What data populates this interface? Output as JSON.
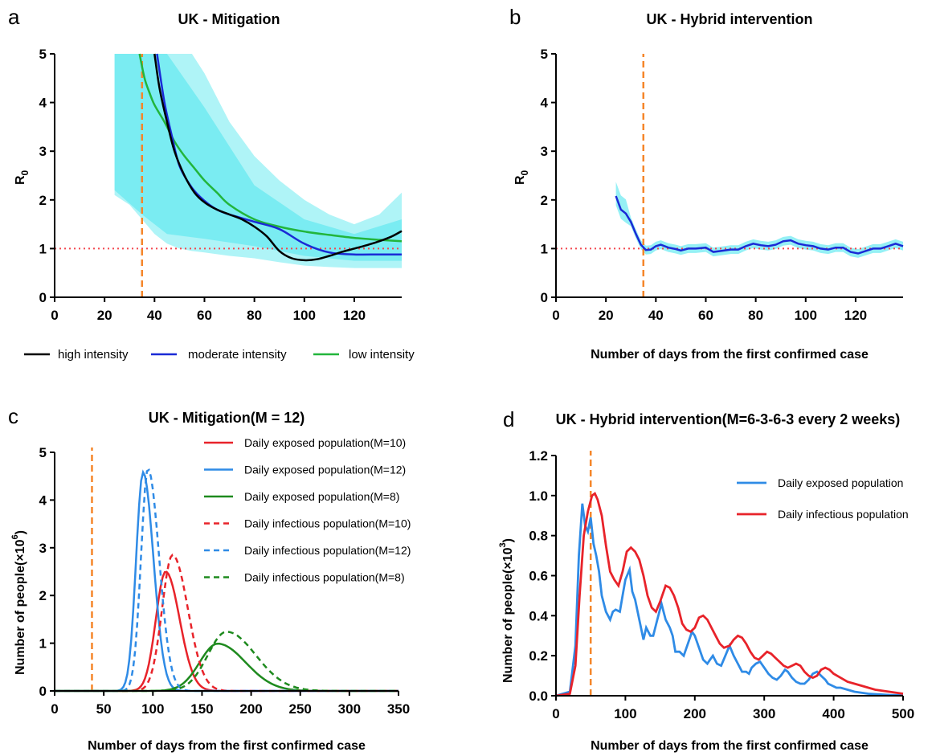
{
  "colors": {
    "high": "#000000",
    "moderate": "#1a2ad6",
    "low": "#22b53c",
    "band": "#4ee6ee",
    "ref": "#f3474f",
    "vline": "#f5862a",
    "red": "#e8232a",
    "blue": "#2f8be6",
    "green": "#1e8a1e"
  },
  "chart_data": [
    {
      "type": "line",
      "panel_label": "a",
      "title": "UK - Mitigation",
      "xlabel": "",
      "ylabel": "R",
      "ylabel_sub": "0",
      "xlim": [
        0,
        139
      ],
      "ylim": [
        0,
        5
      ],
      "x_ticks": [
        0,
        20,
        40,
        60,
        80,
        100,
        120
      ],
      "y_ticks": [
        0,
        1,
        2,
        3,
        4,
        5
      ],
      "legend_position": "bottom",
      "reference_line_y": 1,
      "vertical_line_x": 35,
      "series": [
        {
          "name": "high intensity",
          "key": "high",
          "x": [
            40,
            42,
            45,
            48,
            52,
            56,
            60,
            65,
            70,
            75,
            80,
            85,
            90,
            95,
            100,
            105,
            110,
            115,
            120,
            125,
            130,
            135,
            139
          ],
          "y": [
            5.0,
            4.3,
            3.6,
            3.0,
            2.5,
            2.15,
            1.95,
            1.8,
            1.7,
            1.6,
            1.45,
            1.25,
            0.95,
            0.8,
            0.76,
            0.78,
            0.85,
            0.93,
            1.0,
            1.07,
            1.15,
            1.25,
            1.36
          ]
        },
        {
          "name": "moderate intensity",
          "key": "moderate",
          "x": [
            41,
            44,
            47,
            50,
            55,
            60,
            65,
            70,
            80,
            90,
            100,
            110,
            120,
            130,
            139
          ],
          "y": [
            5.0,
            4.0,
            3.3,
            2.7,
            2.25,
            1.98,
            1.8,
            1.7,
            1.55,
            1.4,
            1.1,
            0.92,
            0.88,
            0.88,
            0.88
          ]
        },
        {
          "name": "low intensity",
          "key": "low",
          "x": [
            34,
            36,
            38,
            40,
            44,
            48,
            52,
            56,
            60,
            65,
            70,
            80,
            90,
            100,
            110,
            120,
            130,
            139
          ],
          "y": [
            5.0,
            4.5,
            4.2,
            3.95,
            3.6,
            3.2,
            2.9,
            2.65,
            2.4,
            2.15,
            1.9,
            1.6,
            1.45,
            1.35,
            1.28,
            1.22,
            1.18,
            1.15
          ]
        }
      ],
      "bands": [
        {
          "x": [
            24,
            30,
            35,
            40,
            45,
            50,
            55,
            60,
            70,
            80,
            90,
            100,
            110,
            120,
            130,
            139
          ],
          "lower": [
            2.1,
            1.9,
            1.6,
            1.3,
            1.1,
            1.0,
            0.95,
            0.92,
            0.85,
            0.8,
            0.72,
            0.65,
            0.62,
            0.6,
            0.6,
            0.6
          ],
          "upper": [
            5.0,
            5.0,
            5.0,
            5.0,
            5.0,
            5.0,
            5.0,
            4.6,
            3.6,
            2.9,
            2.4,
            2.0,
            1.7,
            1.5,
            1.7,
            2.15
          ]
        },
        {
          "x": [
            24,
            35,
            45,
            60,
            80,
            100,
            120,
            139
          ],
          "lower": [
            2.2,
            1.7,
            1.3,
            1.2,
            1.05,
            0.85,
            0.75,
            0.75
          ],
          "upper": [
            5.0,
            5.0,
            5.0,
            3.9,
            2.3,
            1.6,
            1.3,
            1.6
          ]
        }
      ]
    },
    {
      "type": "line",
      "panel_label": "b",
      "title": "UK - Hybrid intervention",
      "xlabel": "Number of days from the first confirmed case",
      "ylabel": "R",
      "ylabel_sub": "0",
      "xlim": [
        0,
        139
      ],
      "ylim": [
        0,
        5
      ],
      "x_ticks": [
        0,
        20,
        40,
        60,
        80,
        100,
        120
      ],
      "y_ticks": [
        0,
        1,
        2,
        3,
        4,
        5
      ],
      "reference_line_y": 1,
      "vertical_line_x": 35,
      "series": [
        {
          "name": "",
          "key": "moderate",
          "x": [
            24,
            26,
            28,
            30,
            32,
            34,
            36,
            38,
            40,
            42,
            45,
            48,
            50,
            53,
            56,
            60,
            63,
            66,
            70,
            73,
            76,
            79,
            82,
            85,
            88,
            91,
            94,
            97,
            100,
            103,
            106,
            109,
            112,
            115,
            118,
            121,
            124,
            127,
            130,
            133,
            136,
            139
          ],
          "y": [
            2.08,
            1.8,
            1.72,
            1.55,
            1.3,
            1.08,
            0.97,
            0.98,
            1.05,
            1.08,
            1.02,
            0.99,
            0.96,
            1.0,
            1.0,
            1.02,
            0.93,
            0.95,
            0.98,
            0.98,
            1.05,
            1.1,
            1.07,
            1.05,
            1.08,
            1.15,
            1.17,
            1.1,
            1.07,
            1.05,
            1.0,
            0.98,
            1.02,
            1.02,
            0.93,
            0.9,
            0.95,
            1.0,
            1.0,
            1.05,
            1.1,
            1.05
          ]
        }
      ],
      "band_halfwidth": 0.09
    },
    {
      "type": "line",
      "panel_label": "c",
      "title": "UK - Mitigation(M = 12)",
      "xlabel": "Number of days from the first confirmed case",
      "ylabel": "Number of people(×10",
      "ylabel_sup": "6",
      "ylabel_end": ")",
      "xlim": [
        0,
        350
      ],
      "ylim": [
        0,
        5
      ],
      "x_ticks": [
        0,
        50,
        100,
        150,
        200,
        250,
        300,
        350
      ],
      "y_ticks": [
        0,
        1,
        2,
        3,
        4,
        5
      ],
      "legend_position": "top-right",
      "vertical_line_x": 38,
      "series": [
        {
          "name": "Daily exposed population(M=10)",
          "color": "red",
          "dash": false,
          "peak_x": 113,
          "peak_y": 2.5,
          "w_left": 14,
          "w_right": 20
        },
        {
          "name": "Daily exposed population(M=12)",
          "color": "blue",
          "dash": false,
          "peak_x": 90,
          "peak_y": 4.58,
          "w_left": 10,
          "w_right": 15
        },
        {
          "name": "Daily exposed population(M=8)",
          "color": "green",
          "dash": false,
          "peak_x": 166,
          "peak_y": 0.99,
          "w_left": 26,
          "w_right": 40
        },
        {
          "name": "Daily infectious population(M=10)",
          "color": "red",
          "dash": true,
          "peak_x": 120,
          "peak_y": 2.85,
          "w_left": 15,
          "w_right": 22
        },
        {
          "name": "Daily infectious population(M=12)",
          "color": "blue",
          "dash": true,
          "peak_x": 95,
          "peak_y": 4.65,
          "w_left": 10,
          "w_right": 16
        },
        {
          "name": "Daily infectious population(M=8)",
          "color": "green",
          "dash": true,
          "peak_x": 175,
          "peak_y": 1.24,
          "w_left": 27,
          "w_right": 42
        }
      ]
    },
    {
      "type": "line",
      "panel_label": "d",
      "title": "UK - Hybrid intervention(M=6-3-6-3 every 2 weeks)",
      "xlabel": "Number of days from the first confirmed case",
      "ylabel": "Number of people(×10",
      "ylabel_sup": "3",
      "ylabel_end": ")",
      "xlim": [
        0,
        500
      ],
      "ylim": [
        0,
        1.2
      ],
      "x_ticks": [
        0,
        100,
        200,
        300,
        400,
        500
      ],
      "y_ticks": [
        0.0,
        0.2,
        0.4,
        0.6,
        0.8,
        1.0,
        1.2
      ],
      "legend_position": "top-right",
      "vertical_line_x": 50,
      "series": [
        {
          "name": "Daily exposed population",
          "color": "blue",
          "x": [
            0,
            20,
            28,
            33,
            38,
            42,
            46,
            50,
            54,
            58,
            62,
            66,
            72,
            78,
            82,
            86,
            92,
            96,
            100,
            106,
            110,
            114,
            120,
            126,
            130,
            136,
            140,
            146,
            152,
            158,
            164,
            168,
            172,
            178,
            184,
            190,
            196,
            200,
            206,
            212,
            218,
            222,
            226,
            232,
            238,
            244,
            250,
            256,
            262,
            268,
            274,
            278,
            282,
            288,
            294,
            300,
            306,
            312,
            318,
            324,
            330,
            334,
            340,
            346,
            352,
            358,
            364,
            370,
            376,
            382,
            388,
            392,
            398,
            404,
            410,
            420,
            430,
            440,
            450,
            460,
            470,
            480,
            490,
            500
          ],
          "y": [
            0,
            0.02,
            0.25,
            0.7,
            0.96,
            0.85,
            0.82,
            0.89,
            0.76,
            0.7,
            0.62,
            0.5,
            0.42,
            0.38,
            0.42,
            0.43,
            0.42,
            0.5,
            0.58,
            0.63,
            0.52,
            0.48,
            0.38,
            0.28,
            0.34,
            0.3,
            0.3,
            0.38,
            0.46,
            0.38,
            0.34,
            0.3,
            0.22,
            0.22,
            0.2,
            0.26,
            0.32,
            0.3,
            0.24,
            0.18,
            0.16,
            0.18,
            0.2,
            0.16,
            0.15,
            0.2,
            0.25,
            0.2,
            0.16,
            0.12,
            0.12,
            0.11,
            0.14,
            0.16,
            0.17,
            0.14,
            0.11,
            0.09,
            0.08,
            0.1,
            0.13,
            0.12,
            0.09,
            0.07,
            0.06,
            0.06,
            0.08,
            0.11,
            0.12,
            0.1,
            0.08,
            0.06,
            0.05,
            0.04,
            0.04,
            0.03,
            0.02,
            0.015,
            0.01,
            0.008,
            0.006,
            0.004,
            0.003,
            0.002
          ]
        },
        {
          "name": "Daily infectious population",
          "color": "red",
          "x": [
            0,
            20,
            28,
            34,
            40,
            46,
            52,
            56,
            60,
            66,
            72,
            78,
            84,
            90,
            96,
            102,
            108,
            114,
            120,
            126,
            132,
            138,
            144,
            150,
            158,
            164,
            170,
            176,
            182,
            188,
            194,
            200,
            206,
            212,
            218,
            224,
            230,
            236,
            242,
            250,
            256,
            262,
            268,
            274,
            280,
            286,
            292,
            298,
            304,
            310,
            316,
            322,
            328,
            334,
            340,
            346,
            352,
            358,
            364,
            370,
            376,
            382,
            388,
            394,
            400,
            410,
            420,
            430,
            440,
            450,
            460,
            470,
            480,
            490,
            500
          ],
          "y": [
            0,
            0.01,
            0.15,
            0.5,
            0.8,
            0.92,
            1.0,
            1.01,
            0.98,
            0.9,
            0.75,
            0.62,
            0.58,
            0.55,
            0.62,
            0.72,
            0.74,
            0.72,
            0.68,
            0.6,
            0.5,
            0.44,
            0.42,
            0.47,
            0.55,
            0.54,
            0.5,
            0.44,
            0.36,
            0.33,
            0.32,
            0.34,
            0.39,
            0.4,
            0.38,
            0.34,
            0.3,
            0.26,
            0.24,
            0.25,
            0.28,
            0.3,
            0.29,
            0.26,
            0.22,
            0.19,
            0.18,
            0.2,
            0.22,
            0.21,
            0.19,
            0.17,
            0.15,
            0.14,
            0.15,
            0.16,
            0.15,
            0.12,
            0.1,
            0.09,
            0.1,
            0.13,
            0.14,
            0.13,
            0.11,
            0.09,
            0.07,
            0.06,
            0.05,
            0.04,
            0.03,
            0.025,
            0.02,
            0.015,
            0.01
          ]
        }
      ]
    }
  ]
}
